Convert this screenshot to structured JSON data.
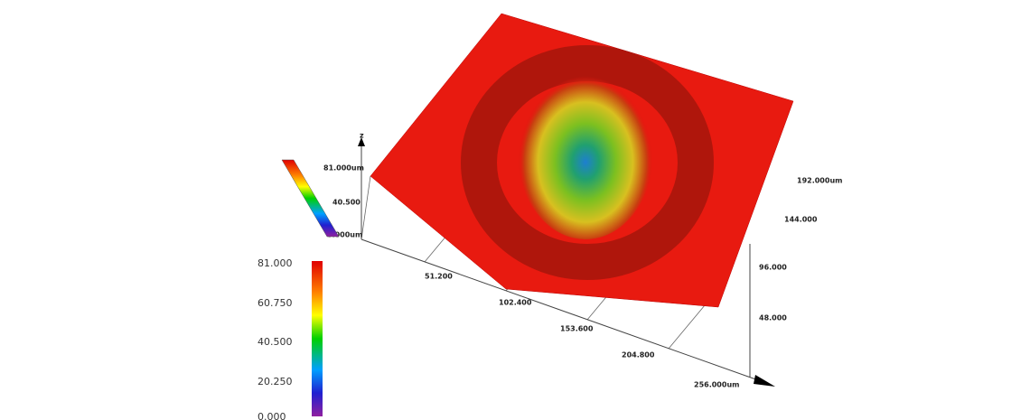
{
  "z_axis": {
    "label": "z",
    "ticks": [
      "81.000um",
      "40.500",
      "0.000um"
    ]
  },
  "x_axis": {
    "ticks": [
      "51.200",
      "102.400",
      "153.600",
      "204.800",
      "256.000um"
    ]
  },
  "y_axis": {
    "ticks": [
      "48.000",
      "96.000",
      "144.000",
      "192.000um"
    ]
  },
  "colorbar": {
    "labels": [
      "81.000",
      "60.750",
      "40.500",
      "20.250",
      "0.000"
    ]
  }
}
